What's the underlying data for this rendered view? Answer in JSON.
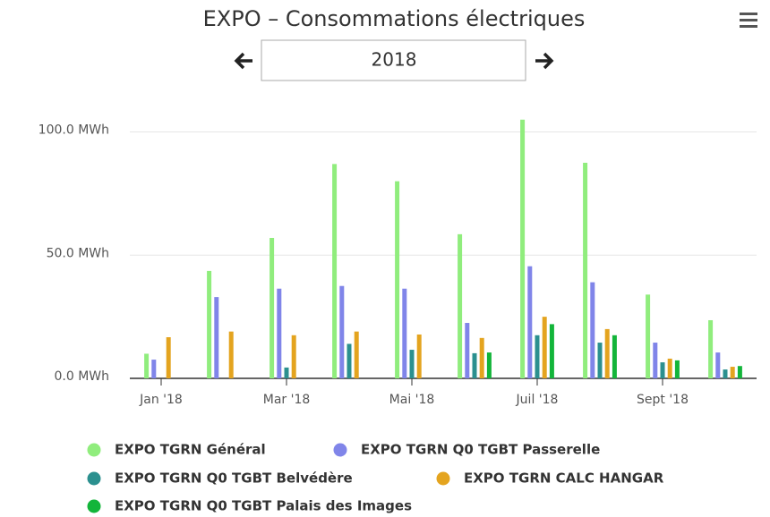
{
  "chart_data": {
    "type": "bar",
    "title": "EXPO – Consommations électriques",
    "year": "2018",
    "categories": [
      "Jan '18",
      null,
      "Mar '18",
      null,
      "Mai '18",
      null,
      "Juil '18",
      null,
      "Sept '18",
      null
    ],
    "series": [
      {
        "name": "EXPO TGRN Général",
        "color": "#90ed7d",
        "values": [
          10,
          43.6,
          57,
          87,
          80,
          58.5,
          105,
          87.5,
          34,
          23.6
        ]
      },
      {
        "name": "EXPO TGRN Q0 TGBT Passerelle",
        "color": "#8085e9",
        "values": [
          7.6,
          33,
          36.4,
          37.5,
          36.4,
          22.5,
          45.5,
          39,
          14.5,
          10.5
        ]
      },
      {
        "name": "EXPO TGRN Q0 TGBT Belvédère",
        "color": "#2b908f",
        "values": [
          null,
          null,
          4.4,
          14,
          11.6,
          10.2,
          17.5,
          14.5,
          6.5,
          3.6
        ]
      },
      {
        "name": "EXPO TGRN CALC HANGAR",
        "color": "#e4a41f",
        "values": [
          16.7,
          19,
          17.5,
          19,
          17.8,
          16.4,
          25,
          20,
          8,
          4.7
        ]
      },
      {
        "name": "EXPO TGRN Q0 TGBT Palais des Images",
        "color": "#13b53a",
        "values": [
          null,
          null,
          null,
          null,
          null,
          10.5,
          22,
          17.5,
          7.3,
          5
        ]
      }
    ],
    "ylim": [
      0,
      110
    ],
    "yticks": [
      {
        "value": 0,
        "label": "0.0 MWh"
      },
      {
        "value": 50,
        "label": "50.0 MWh"
      },
      {
        "value": 100,
        "label": "100.0 MWh"
      }
    ],
    "grid": true
  }
}
